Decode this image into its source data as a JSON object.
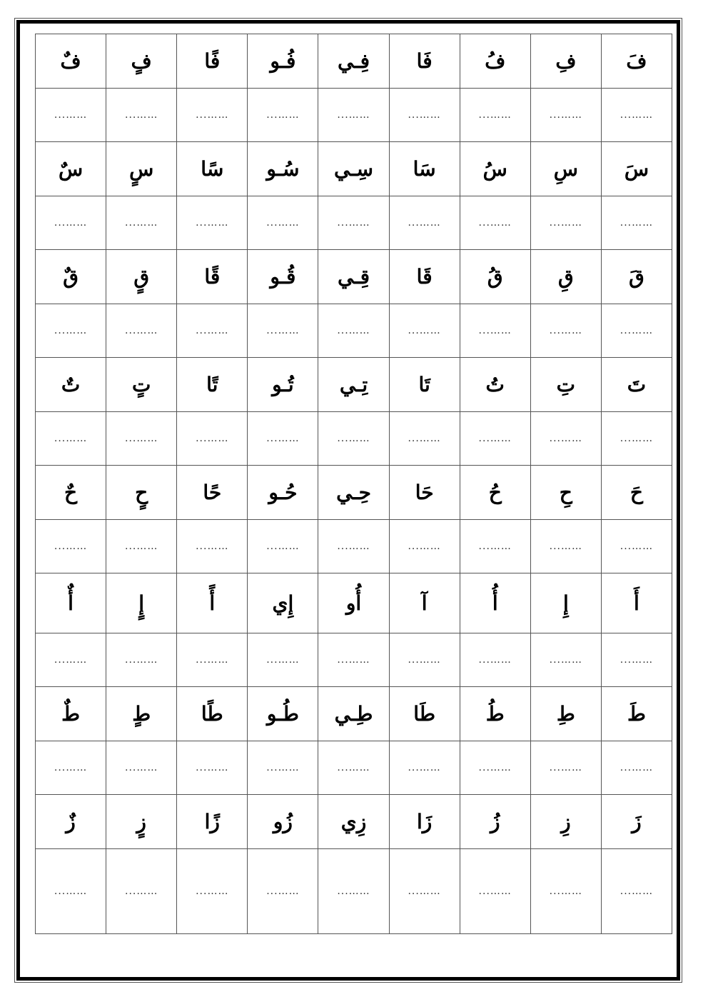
{
  "dots": "……...",
  "rows": [
    [
      "فَ",
      "فِ",
      "فُ",
      "فَا",
      "فِـي",
      "فُـو",
      "فًا",
      "فٍ",
      "فٌ"
    ],
    [
      "سَ",
      "سِ",
      "سُ",
      "سَا",
      "سِـي",
      "سُـو",
      "سًا",
      "سٍ",
      "سٌ"
    ],
    [
      "قَ",
      "قِ",
      "قُ",
      "قَا",
      "قِـي",
      "قُـو",
      "قًا",
      "قٍ",
      "قٌ"
    ],
    [
      "تَ",
      "تِ",
      "تُ",
      "تَا",
      "تِـي",
      "تُـو",
      "تًا",
      "تٍ",
      "تٌ"
    ],
    [
      "حَ",
      "حِ",
      "حُ",
      "حَا",
      "حِـي",
      "حُـو",
      "حًا",
      "حٍ",
      "حٌ"
    ],
    [
      "أَ",
      "إِ",
      "أُ",
      "آ",
      "أُو",
      "إِي",
      "أً",
      "إٍ",
      "أٌ"
    ],
    [
      "طَ",
      "طِ",
      "طُ",
      "طَا",
      "طِـي",
      "طُـو",
      "طًا",
      "طٍ",
      "طٌ"
    ],
    [
      "زَ",
      "زِ",
      "زُ",
      "زَا",
      "زِي",
      "زُو",
      "زًا",
      "زٍ",
      "زٌ"
    ]
  ]
}
